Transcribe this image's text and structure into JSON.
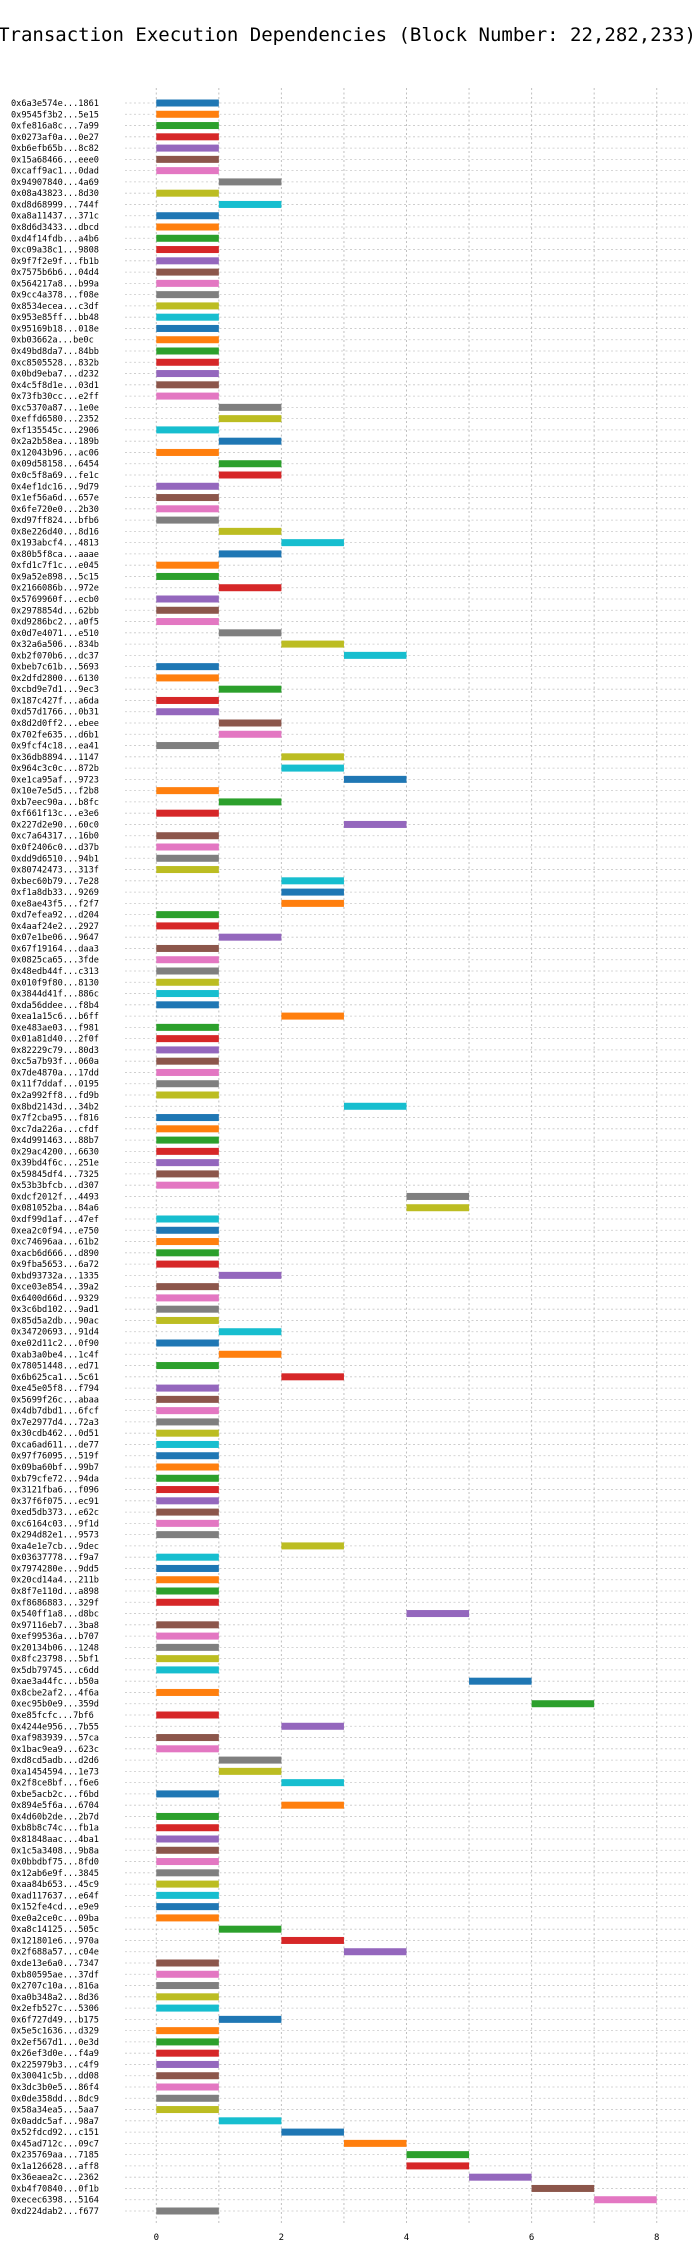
{
  "chart_data": {
    "type": "bar",
    "orientation": "horizontal",
    "title": "Transaction Execution Dependencies (Block Number: 22,282,233)",
    "xlabel": "",
    "ylabel": "",
    "xlim": [
      -0.5,
      8.5
    ],
    "xticks": [
      0,
      2,
      4,
      6,
      8
    ],
    "grid": true,
    "palette": [
      "#1f77b4",
      "#ff7f0e",
      "#2ca02c",
      "#d62728",
      "#9467bd",
      "#8c564b",
      "#e377c2",
      "#7f7f7f",
      "#bcbd22",
      "#17becf"
    ],
    "rows": [
      {
        "tx": "0x6a3e574e...1861",
        "start": 0,
        "end": 1
      },
      {
        "tx": "0x9545f3b2...5e15",
        "start": 0,
        "end": 1
      },
      {
        "tx": "0xfe816a8c...7a99",
        "start": 0,
        "end": 1
      },
      {
        "tx": "0x0273af0a...0e27",
        "start": 0,
        "end": 1
      },
      {
        "tx": "0xb6efb65b...8c82",
        "start": 0,
        "end": 1
      },
      {
        "tx": "0x15a68466...eee0",
        "start": 0,
        "end": 1
      },
      {
        "tx": "0xcaff9ac1...0dad",
        "start": 0,
        "end": 1
      },
      {
        "tx": "0x94907840...4a69",
        "start": 1,
        "end": 2
      },
      {
        "tx": "0x08a43823...8d30",
        "start": 0,
        "end": 1
      },
      {
        "tx": "0xd8d68999...744f",
        "start": 1,
        "end": 2
      },
      {
        "tx": "0xa8a11437...371c",
        "start": 0,
        "end": 1
      },
      {
        "tx": "0x8d6d3433...dbcd",
        "start": 0,
        "end": 1
      },
      {
        "tx": "0xd4f14fdb...a4b6",
        "start": 0,
        "end": 1
      },
      {
        "tx": "0xc09a38c1...9808",
        "start": 0,
        "end": 1
      },
      {
        "tx": "0x9f7f2e9f...fb1b",
        "start": 0,
        "end": 1
      },
      {
        "tx": "0x7575b6b6...04d4",
        "start": 0,
        "end": 1
      },
      {
        "tx": "0x564217a8...b99a",
        "start": 0,
        "end": 1
      },
      {
        "tx": "0x9cc4a378...f08e",
        "start": 0,
        "end": 1
      },
      {
        "tx": "0x8534ecea...c3df",
        "start": 0,
        "end": 1
      },
      {
        "tx": "0x953e85ff...bb48",
        "start": 0,
        "end": 1
      },
      {
        "tx": "0x95169b18...018e",
        "start": 0,
        "end": 1
      },
      {
        "tx": "0xb03662a...be0c",
        "start": 0,
        "end": 1
      },
      {
        "tx": "0x49bd8da7...84bb",
        "start": 0,
        "end": 1
      },
      {
        "tx": "0xc8505528...832b",
        "start": 0,
        "end": 1
      },
      {
        "tx": "0x0bd9eba7...d232",
        "start": 0,
        "end": 1
      },
      {
        "tx": "0x4c5f8d1e...03d1",
        "start": 0,
        "end": 1
      },
      {
        "tx": "0x73fb30cc...e2ff",
        "start": 0,
        "end": 1
      },
      {
        "tx": "0xc5370a87...1e0e",
        "start": 1,
        "end": 2
      },
      {
        "tx": "0xeffd6580...2352",
        "start": 1,
        "end": 2
      },
      {
        "tx": "0xf135545c...2906",
        "start": 0,
        "end": 1
      },
      {
        "tx": "0x2a2b58ea...189b",
        "start": 1,
        "end": 2
      },
      {
        "tx": "0x12043b96...ac06",
        "start": 0,
        "end": 1
      },
      {
        "tx": "0x09d58158...6454",
        "start": 1,
        "end": 2
      },
      {
        "tx": "0x0c5f8a69...fe1c",
        "start": 1,
        "end": 2
      },
      {
        "tx": "0x4ef1dc16...9d79",
        "start": 0,
        "end": 1
      },
      {
        "tx": "0x1ef56a6d...657e",
        "start": 0,
        "end": 1
      },
      {
        "tx": "0x6fe720e0...2b30",
        "start": 0,
        "end": 1
      },
      {
        "tx": "0xd97ff824...bfb6",
        "start": 0,
        "end": 1
      },
      {
        "tx": "0x8e226d40...8d16",
        "start": 1,
        "end": 2
      },
      {
        "tx": "0x193abcf4...4813",
        "start": 2,
        "end": 3
      },
      {
        "tx": "0x80b5f8ca...aaae",
        "start": 1,
        "end": 2
      },
      {
        "tx": "0xfd1c7f1c...e045",
        "start": 0,
        "end": 1
      },
      {
        "tx": "0x9a52e898...5c15",
        "start": 0,
        "end": 1
      },
      {
        "tx": "0x2166086b...972e",
        "start": 1,
        "end": 2
      },
      {
        "tx": "0x5769960f...ecb0",
        "start": 0,
        "end": 1
      },
      {
        "tx": "0x2978854d...62bb",
        "start": 0,
        "end": 1
      },
      {
        "tx": "0xd9286bc2...a0f5",
        "start": 0,
        "end": 1
      },
      {
        "tx": "0x0d7e4071...e510",
        "start": 1,
        "end": 2
      },
      {
        "tx": "0x32a6a506...834b",
        "start": 2,
        "end": 3
      },
      {
        "tx": "0xb2f070b6...dc37",
        "start": 3,
        "end": 4
      },
      {
        "tx": "0xbeb7c61b...5693",
        "start": 0,
        "end": 1
      },
      {
        "tx": "0x2dfd2800...6130",
        "start": 0,
        "end": 1
      },
      {
        "tx": "0xcbd9e7d1...9ec3",
        "start": 1,
        "end": 2
      },
      {
        "tx": "0x187c427f...a6da",
        "start": 0,
        "end": 1
      },
      {
        "tx": "0xd57d1766...0b31",
        "start": 0,
        "end": 1
      },
      {
        "tx": "0x8d2d0ff2...ebee",
        "start": 1,
        "end": 2
      },
      {
        "tx": "0x702fe635...d6b1",
        "start": 1,
        "end": 2
      },
      {
        "tx": "0x9fcf4c18...ea41",
        "start": 0,
        "end": 1
      },
      {
        "tx": "0x36db8894...1147",
        "start": 2,
        "end": 3
      },
      {
        "tx": "0x964c3c0c...872b",
        "start": 2,
        "end": 3
      },
      {
        "tx": "0xe1ca95af...9723",
        "start": 3,
        "end": 4
      },
      {
        "tx": "0x10e7e5d5...f2b8",
        "start": 0,
        "end": 1
      },
      {
        "tx": "0xb7eec90a...b8fc",
        "start": 1,
        "end": 2
      },
      {
        "tx": "0xf661f13c...e3e6",
        "start": 0,
        "end": 1
      },
      {
        "tx": "0x227d2e90...60c0",
        "start": 3,
        "end": 4
      },
      {
        "tx": "0xc7a64317...16b0",
        "start": 0,
        "end": 1
      },
      {
        "tx": "0x0f2406c0...d37b",
        "start": 0,
        "end": 1
      },
      {
        "tx": "0xdd9d6510...94b1",
        "start": 0,
        "end": 1
      },
      {
        "tx": "0x80742473...313f",
        "start": 0,
        "end": 1
      },
      {
        "tx": "0xbec60b79...7e28",
        "start": 2,
        "end": 3
      },
      {
        "tx": "0xf1a8db33...9269",
        "start": 2,
        "end": 3
      },
      {
        "tx": "0xe8ae43f5...f2f7",
        "start": 2,
        "end": 3
      },
      {
        "tx": "0xd7efea92...d204",
        "start": 0,
        "end": 1
      },
      {
        "tx": "0x4aaf24e2...2927",
        "start": 0,
        "end": 1
      },
      {
        "tx": "0x07e1be06...9647",
        "start": 1,
        "end": 2
      },
      {
        "tx": "0x67f19164...daa3",
        "start": 0,
        "end": 1
      },
      {
        "tx": "0x0825ca65...3fde",
        "start": 0,
        "end": 1
      },
      {
        "tx": "0x48edb44f...c313",
        "start": 0,
        "end": 1
      },
      {
        "tx": "0x010f9f80...8130",
        "start": 0,
        "end": 1
      },
      {
        "tx": "0x3844d41f...886c",
        "start": 0,
        "end": 1
      },
      {
        "tx": "0xda56ddee...f8b4",
        "start": 0,
        "end": 1
      },
      {
        "tx": "0xea1a15c6...b6ff",
        "start": 2,
        "end": 3
      },
      {
        "tx": "0xe483ae03...f981",
        "start": 0,
        "end": 1
      },
      {
        "tx": "0x01a81d40...2f0f",
        "start": 0,
        "end": 1
      },
      {
        "tx": "0x82229c79...80d3",
        "start": 0,
        "end": 1
      },
      {
        "tx": "0xc5a7b93f...060a",
        "start": 0,
        "end": 1
      },
      {
        "tx": "0x7de4870a...17dd",
        "start": 0,
        "end": 1
      },
      {
        "tx": "0x11f7ddaf...0195",
        "start": 0,
        "end": 1
      },
      {
        "tx": "0x2a992ff8...fd9b",
        "start": 0,
        "end": 1
      },
      {
        "tx": "0x8bd2143d...34b2",
        "start": 3,
        "end": 4
      },
      {
        "tx": "0x7f2cba95...f816",
        "start": 0,
        "end": 1
      },
      {
        "tx": "0xc7da226a...cfdf",
        "start": 0,
        "end": 1
      },
      {
        "tx": "0x4d991463...88b7",
        "start": 0,
        "end": 1
      },
      {
        "tx": "0x29ac4200...6630",
        "start": 0,
        "end": 1
      },
      {
        "tx": "0x39bd4f6c...251e",
        "start": 0,
        "end": 1
      },
      {
        "tx": "0x59845df4...7325",
        "start": 0,
        "end": 1
      },
      {
        "tx": "0x53b3bfcb...d307",
        "start": 0,
        "end": 1
      },
      {
        "tx": "0xdcf2012f...4493",
        "start": 4,
        "end": 5
      },
      {
        "tx": "0x081052ba...84a6",
        "start": 4,
        "end": 5
      },
      {
        "tx": "0xdf99d1af...47ef",
        "start": 0,
        "end": 1
      },
      {
        "tx": "0xea2c0f94...e750",
        "start": 0,
        "end": 1
      },
      {
        "tx": "0xc74696aa...61b2",
        "start": 0,
        "end": 1
      },
      {
        "tx": "0xacb6d666...d890",
        "start": 0,
        "end": 1
      },
      {
        "tx": "0x9fba5653...6a72",
        "start": 0,
        "end": 1
      },
      {
        "tx": "0xbd93732a...1335",
        "start": 1,
        "end": 2
      },
      {
        "tx": "0xce03e854...39a2",
        "start": 0,
        "end": 1
      },
      {
        "tx": "0x6400d66d...9329",
        "start": 0,
        "end": 1
      },
      {
        "tx": "0x3c6bd102...9ad1",
        "start": 0,
        "end": 1
      },
      {
        "tx": "0x85d5a2db...90ac",
        "start": 0,
        "end": 1
      },
      {
        "tx": "0x34720693...91d4",
        "start": 1,
        "end": 2
      },
      {
        "tx": "0xe02d11c2...0f90",
        "start": 0,
        "end": 1
      },
      {
        "tx": "0xab3a0be4...1c4f",
        "start": 1,
        "end": 2
      },
      {
        "tx": "0x78051448...ed71",
        "start": 0,
        "end": 1
      },
      {
        "tx": "0x6b625ca1...5c61",
        "start": 2,
        "end": 3
      },
      {
        "tx": "0xe45e05f8...f794",
        "start": 0,
        "end": 1
      },
      {
        "tx": "0x5699f26c...abaa",
        "start": 0,
        "end": 1
      },
      {
        "tx": "0x4db7dbd1...6fcf",
        "start": 0,
        "end": 1
      },
      {
        "tx": "0x7e2977d4...72a3",
        "start": 0,
        "end": 1
      },
      {
        "tx": "0x30cdb462...0d51",
        "start": 0,
        "end": 1
      },
      {
        "tx": "0xca6ad611...de77",
        "start": 0,
        "end": 1
      },
      {
        "tx": "0x97f76095...519f",
        "start": 0,
        "end": 1
      },
      {
        "tx": "0x09ba60bf...99b7",
        "start": 0,
        "end": 1
      },
      {
        "tx": "0xb79cfe72...94da",
        "start": 0,
        "end": 1
      },
      {
        "tx": "0x3121fba6...f096",
        "start": 0,
        "end": 1
      },
      {
        "tx": "0x37f6f075...ec91",
        "start": 0,
        "end": 1
      },
      {
        "tx": "0xed5db373...e62c",
        "start": 0,
        "end": 1
      },
      {
        "tx": "0xc6164c03...9f1d",
        "start": 0,
        "end": 1
      },
      {
        "tx": "0x294d82e1...9573",
        "start": 0,
        "end": 1
      },
      {
        "tx": "0xa4e1e7cb...9dec",
        "start": 2,
        "end": 3
      },
      {
        "tx": "0x03637778...f9a7",
        "start": 0,
        "end": 1
      },
      {
        "tx": "0x7974280e...9dd5",
        "start": 0,
        "end": 1
      },
      {
        "tx": "0x20cd14a4...211b",
        "start": 0,
        "end": 1
      },
      {
        "tx": "0x8f7e110d...a898",
        "start": 0,
        "end": 1
      },
      {
        "tx": "0xf8686883...329f",
        "start": 0,
        "end": 1
      },
      {
        "tx": "0x540ff1a8...d8bc",
        "start": 4,
        "end": 5
      },
      {
        "tx": "0x97116eb7...3ba8",
        "start": 0,
        "end": 1
      },
      {
        "tx": "0xef99536a...b707",
        "start": 0,
        "end": 1
      },
      {
        "tx": "0x20134b06...1248",
        "start": 0,
        "end": 1
      },
      {
        "tx": "0x8fc23798...5bf1",
        "start": 0,
        "end": 1
      },
      {
        "tx": "0x5db79745...c6dd",
        "start": 0,
        "end": 1
      },
      {
        "tx": "0xae3a44fc...b50a",
        "start": 5,
        "end": 6
      },
      {
        "tx": "0x8cbe2af2...4f6a",
        "start": 0,
        "end": 1
      },
      {
        "tx": "0xec95b0e9...359d",
        "start": 6,
        "end": 7
      },
      {
        "tx": "0xe85fcfc...7bf6",
        "start": 0,
        "end": 1
      },
      {
        "tx": "0x4244e956...7b55",
        "start": 2,
        "end": 3
      },
      {
        "tx": "0xaf983939...57ca",
        "start": 0,
        "end": 1
      },
      {
        "tx": "0x1bac9ea9...623c",
        "start": 0,
        "end": 1
      },
      {
        "tx": "0xd8cd5adb...d2d6",
        "start": 1,
        "end": 2
      },
      {
        "tx": "0xa1454594...1e73",
        "start": 1,
        "end": 2
      },
      {
        "tx": "0x2f8ce8bf...f6e6",
        "start": 2,
        "end": 3
      },
      {
        "tx": "0xbe5acb2c...f6bd",
        "start": 0,
        "end": 1
      },
      {
        "tx": "0x894e5f6a...6704",
        "start": 2,
        "end": 3
      },
      {
        "tx": "0x4d60b2de...2b7d",
        "start": 0,
        "end": 1
      },
      {
        "tx": "0xb8b8c74c...fb1a",
        "start": 0,
        "end": 1
      },
      {
        "tx": "0x81848aac...4ba1",
        "start": 0,
        "end": 1
      },
      {
        "tx": "0x1c5a3408...9b8a",
        "start": 0,
        "end": 1
      },
      {
        "tx": "0x0bbdbf75...8fd0",
        "start": 0,
        "end": 1
      },
      {
        "tx": "0x12ab6e9f...3845",
        "start": 0,
        "end": 1
      },
      {
        "tx": "0xaa84b653...45c9",
        "start": 0,
        "end": 1
      },
      {
        "tx": "0xad117637...e64f",
        "start": 0,
        "end": 1
      },
      {
        "tx": "0x152fe4cd...e9e9",
        "start": 0,
        "end": 1
      },
      {
        "tx": "0xe0a2ce0c...09ba",
        "start": 0,
        "end": 1
      },
      {
        "tx": "0xa8c14125...505c",
        "start": 1,
        "end": 2
      },
      {
        "tx": "0x121801e6...970a",
        "start": 2,
        "end": 3
      },
      {
        "tx": "0x2f688a57...c04e",
        "start": 3,
        "end": 4
      },
      {
        "tx": "0xde13e6a0...7347",
        "start": 0,
        "end": 1
      },
      {
        "tx": "0xb80595ae...37df",
        "start": 0,
        "end": 1
      },
      {
        "tx": "0x2707c10a...816a",
        "start": 0,
        "end": 1
      },
      {
        "tx": "0xa0b348a2...8d36",
        "start": 0,
        "end": 1
      },
      {
        "tx": "0x2efb527c...5306",
        "start": 0,
        "end": 1
      },
      {
        "tx": "0x6f727d49...b175",
        "start": 1,
        "end": 2
      },
      {
        "tx": "0x5e5c1636...d329",
        "start": 0,
        "end": 1
      },
      {
        "tx": "0x2ef567d1...0e3d",
        "start": 0,
        "end": 1
      },
      {
        "tx": "0x26ef3d0e...f4a9",
        "start": 0,
        "end": 1
      },
      {
        "tx": "0x225979b3...c4f9",
        "start": 0,
        "end": 1
      },
      {
        "tx": "0x30041c5b...dd08",
        "start": 0,
        "end": 1
      },
      {
        "tx": "0x3dc3b0e5...86f4",
        "start": 0,
        "end": 1
      },
      {
        "tx": "0x0de358dd...8dc9",
        "start": 0,
        "end": 1
      },
      {
        "tx": "0x58a34ea5...5aa7",
        "start": 0,
        "end": 1
      },
      {
        "tx": "0x0addc5af...98a7",
        "start": 1,
        "end": 2
      },
      {
        "tx": "0x52fdcd92...c151",
        "start": 2,
        "end": 3
      },
      {
        "tx": "0x45ad712c...09c7",
        "start": 3,
        "end": 4
      },
      {
        "tx": "0x235769aa...7185",
        "start": 4,
        "end": 5
      },
      {
        "tx": "0x1a126628...aff8",
        "start": 4,
        "end": 5
      },
      {
        "tx": "0x36eaea2c...2362",
        "start": 5,
        "end": 6
      },
      {
        "tx": "0xb4f70840...0f1b",
        "start": 6,
        "end": 7
      },
      {
        "tx": "0xecec6398...5164",
        "start": 7,
        "end": 8
      },
      {
        "tx": "0xd224dab2...f677",
        "start": 0,
        "end": 1
      }
    ]
  }
}
